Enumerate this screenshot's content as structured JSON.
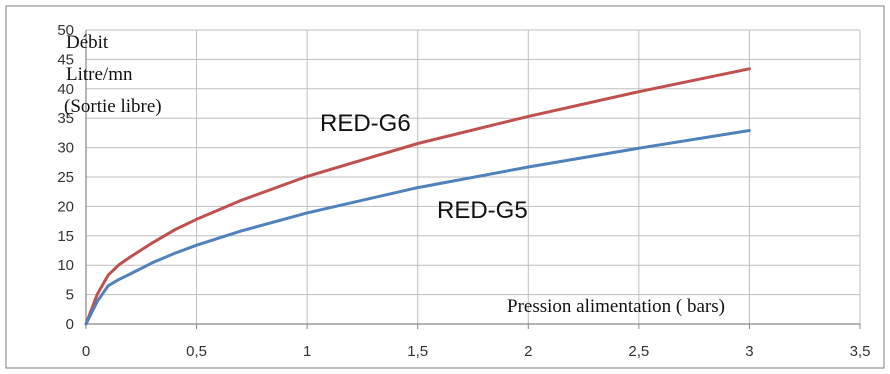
{
  "chart_data": {
    "type": "line",
    "ylabel_lines": [
      "Débit",
      "Litre/mn",
      "(Sortie libre)"
    ],
    "xlabel": "Pression alimentation ( bars)",
    "xlim": [
      0,
      3.5
    ],
    "ylim": [
      0,
      50
    ],
    "x_ticks": [
      "0",
      "0,5",
      "1",
      "1,5",
      "2",
      "2,5",
      "3",
      "3,5"
    ],
    "y_ticks": [
      "0",
      "5",
      "10",
      "15",
      "20",
      "25",
      "30",
      "35",
      "40",
      "45",
      "50"
    ],
    "grid": true,
    "series": [
      {
        "name": "RED-G6",
        "color": "#c0504d",
        "x": [
          0,
          0.05,
          0.1,
          0.15,
          0.2,
          0.3,
          0.4,
          0.5,
          0.7,
          1.0,
          1.5,
          2.0,
          2.5,
          3.0
        ],
        "y": [
          0,
          5.0,
          8.3,
          10.1,
          11.4,
          13.8,
          16.0,
          17.8,
          21.0,
          25.1,
          30.7,
          35.3,
          39.5,
          43.4
        ]
      },
      {
        "name": "RED-G5",
        "color": "#4f81bd",
        "x": [
          0,
          0.05,
          0.1,
          0.15,
          0.2,
          0.3,
          0.4,
          0.5,
          0.7,
          1.0,
          1.5,
          2.0,
          2.5,
          3.0
        ],
        "y": [
          0,
          3.8,
          6.5,
          7.6,
          8.5,
          10.4,
          12.0,
          13.4,
          15.8,
          18.9,
          23.2,
          26.7,
          29.9,
          32.9
        ]
      }
    ]
  }
}
